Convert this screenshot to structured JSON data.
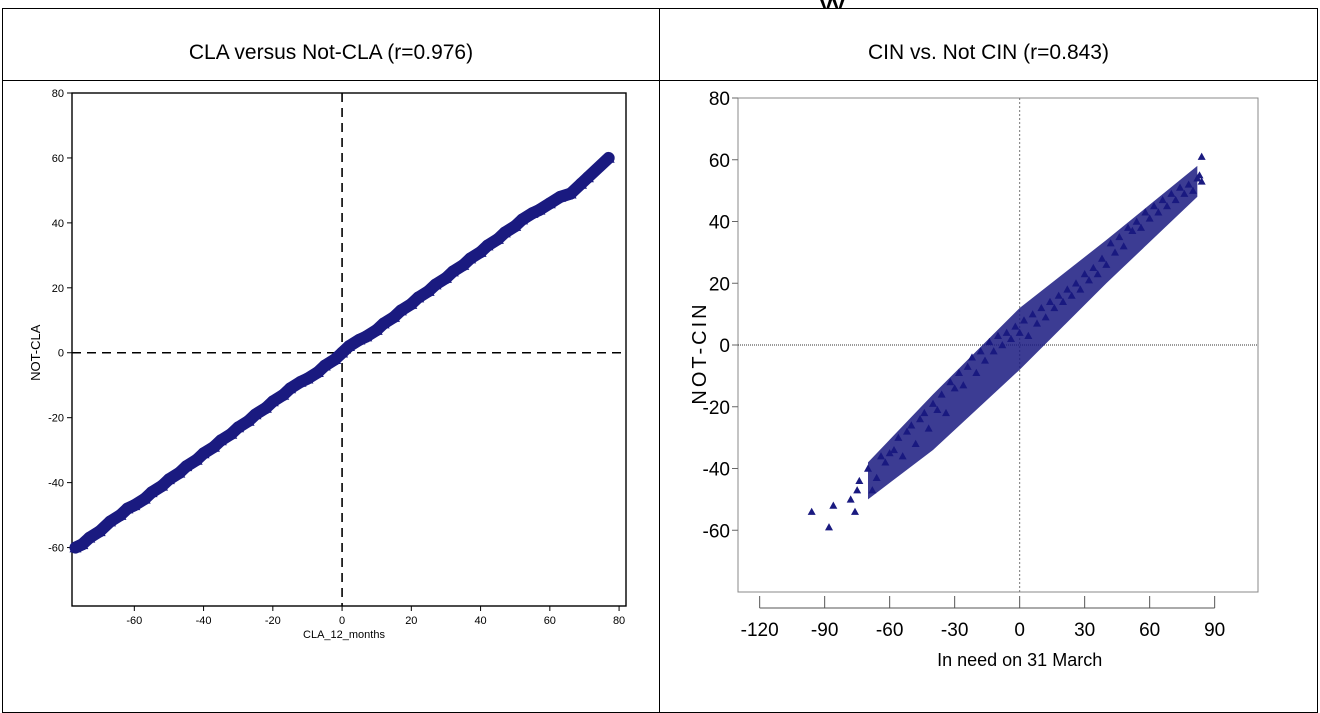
{
  "header": {
    "truncated_text": "yy"
  },
  "columns": [
    {
      "title": "CLA versus Not-CLA (r=0.976)"
    },
    {
      "title": "CIN vs. Not CIN (r=0.843)"
    }
  ],
  "chart_data": [
    {
      "type": "scatter",
      "title": "",
      "xlabel": "CLA_12_months",
      "ylabel": "NOT-CLA",
      "xlim": [
        -78,
        82
      ],
      "ylim": [
        -78,
        80
      ],
      "x_ticks": [
        -60,
        -40,
        -20,
        0,
        20,
        40,
        60,
        80
      ],
      "y_ticks": [
        80,
        60,
        40,
        20,
        0,
        -20,
        -40,
        -60
      ],
      "reference_lines": {
        "x": 0,
        "y": 0,
        "style": "dashed"
      },
      "marker": "triangle",
      "marker_color": "#1a1a80",
      "grid": false,
      "series": [
        {
          "x": [
            -77,
            -75,
            -73,
            -70,
            -67,
            -64,
            -62,
            -60,
            -57,
            -55,
            -52,
            -50,
            -47,
            -45,
            -42,
            -40,
            -37,
            -35,
            -32,
            -30,
            -27,
            -25,
            -22,
            -20,
            -17,
            -15,
            -12,
            -10,
            -7,
            -5,
            -2,
            0,
            2,
            5,
            7,
            10,
            12,
            15,
            17,
            20,
            22,
            25,
            27,
            30,
            32,
            35,
            37,
            40,
            42,
            45,
            47,
            50,
            52,
            55,
            57,
            60,
            63,
            66,
            69,
            71,
            77
          ],
          "y": [
            -60,
            -59,
            -57,
            -55,
            -52,
            -50,
            -48,
            -47,
            -45,
            -43,
            -41,
            -39,
            -37,
            -35,
            -33,
            -31,
            -29,
            -27,
            -25,
            -23,
            -21,
            -19,
            -17,
            -15,
            -13,
            -11,
            -9,
            -8,
            -6,
            -4,
            -2,
            0,
            2,
            4,
            5,
            7,
            9,
            11,
            13,
            15,
            17,
            19,
            21,
            23,
            25,
            27,
            29,
            31,
            33,
            35,
            37,
            39,
            41,
            43,
            44,
            46,
            48,
            49,
            52,
            54,
            60
          ]
        }
      ]
    },
    {
      "type": "scatter",
      "title": "",
      "xlabel": "In need on 31 March",
      "ylabel": "NOT-CIN",
      "xlim": [
        -130,
        110
      ],
      "ylim": [
        -80,
        80
      ],
      "x_ticks": [
        -120,
        -90,
        -60,
        -30,
        0,
        30,
        60,
        90
      ],
      "y_ticks": [
        80,
        60,
        40,
        20,
        0,
        -20,
        -40,
        -60
      ],
      "reference_lines": {
        "x": 0,
        "y": 0,
        "style": "dotted"
      },
      "marker": "triangle",
      "marker_color": "#1a1a80",
      "grid": false,
      "series": [
        {
          "x": [
            -96,
            -88,
            -86,
            -78,
            -76,
            -75,
            -74,
            -70,
            -68,
            -66,
            -64,
            -62,
            -60,
            -58,
            -56,
            -54,
            -52,
            -50,
            -48,
            -46,
            -44,
            -42,
            -40,
            -38,
            -36,
            -34,
            -32,
            -30,
            -28,
            -26,
            -24,
            -22,
            -20,
            -18,
            -16,
            -14,
            -12,
            -10,
            -8,
            -6,
            -4,
            -2,
            0,
            2,
            4,
            6,
            8,
            10,
            12,
            14,
            16,
            18,
            20,
            22,
            24,
            26,
            28,
            30,
            32,
            34,
            36,
            38,
            40,
            42,
            44,
            46,
            48,
            50,
            52,
            54,
            56,
            58,
            60,
            62,
            64,
            66,
            68,
            70,
            72,
            74,
            76,
            78,
            80,
            82,
            84,
            84,
            83
          ],
          "y": [
            -54,
            -59,
            -52,
            -50,
            -54,
            -47,
            -44,
            -40,
            -47,
            -43,
            -36,
            -38,
            -35,
            -34,
            -30,
            -36,
            -28,
            -26,
            -32,
            -24,
            -22,
            -27,
            -19,
            -21,
            -16,
            -22,
            -12,
            -14,
            -9,
            -13,
            -7,
            -4,
            -9,
            -2,
            -5,
            1,
            -2,
            3,
            0,
            4,
            2,
            6,
            4,
            8,
            3,
            10,
            7,
            12,
            9,
            14,
            12,
            16,
            14,
            18,
            16,
            20,
            18,
            23,
            21,
            25,
            23,
            28,
            26,
            33,
            30,
            35,
            32,
            38,
            37,
            40,
            38,
            43,
            41,
            45,
            43,
            47,
            45,
            49,
            47,
            51,
            49,
            52,
            50,
            54,
            53,
            61,
            55
          ]
        }
      ]
    }
  ]
}
